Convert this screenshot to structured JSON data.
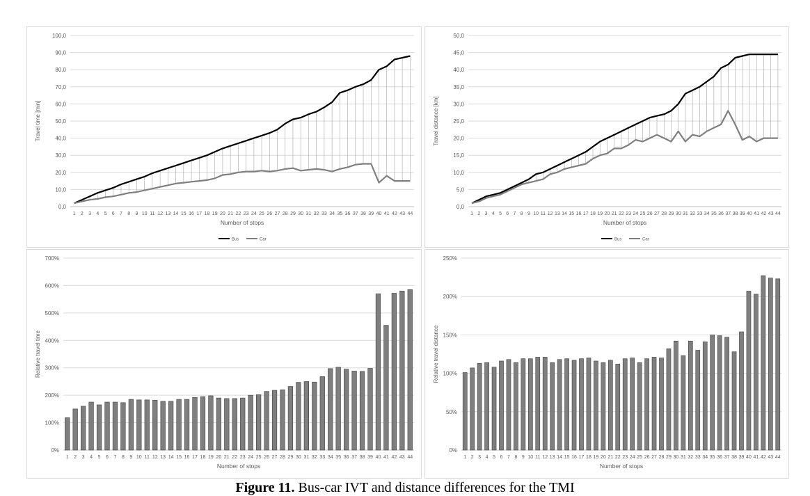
{
  "caption": {
    "label": "Figure 11.",
    "text": "Bus-car IVT and distance differences for the TMI"
  },
  "chart_data": [
    {
      "type": "line",
      "xlabel": "Number of stops",
      "ylabel": "Travel time [min]",
      "ylim": [
        0,
        100
      ],
      "ytick_step": 10,
      "tick_format": "decimal1",
      "grid": true,
      "drop_lines": true,
      "legend": "bottom-center",
      "categories": [
        "1",
        "2",
        "3",
        "4",
        "5",
        "6",
        "7",
        "8",
        "9",
        "10",
        "11",
        "12",
        "13",
        "14",
        "15",
        "16",
        "17",
        "18",
        "19",
        "20",
        "21",
        "22",
        "23",
        "24",
        "25",
        "26",
        "27",
        "28",
        "29",
        "30",
        "31",
        "32",
        "33",
        "34",
        "35",
        "36",
        "37",
        "38",
        "39",
        "40",
        "41",
        "42",
        "43",
        "44"
      ],
      "series": [
        {
          "name": "Bus",
          "color": "#000000",
          "values": [
            2,
            4,
            6,
            8,
            9.5,
            11,
            13,
            14.5,
            16,
            17.5,
            19.5,
            21,
            22.5,
            24,
            25.5,
            27,
            28.5,
            30,
            32,
            34,
            35.5,
            37,
            38.5,
            40,
            41.5,
            43,
            45,
            48.5,
            51,
            52,
            54,
            55.5,
            58,
            61,
            66.5,
            68,
            70,
            71.5,
            74,
            80,
            82,
            86,
            87,
            88
          ]
        },
        {
          "name": "Car",
          "color": "#7f7f7f",
          "values": [
            2,
            3,
            4,
            4.5,
            5.5,
            6,
            7,
            8,
            8.5,
            9.5,
            10.5,
            11.5,
            12.5,
            13.5,
            14,
            14.5,
            15,
            15.5,
            16.5,
            18.5,
            19,
            20,
            20.5,
            20.5,
            21,
            20.5,
            21,
            22,
            22.5,
            21,
            21.5,
            22,
            21.5,
            20.5,
            22,
            23,
            24.5,
            25,
            25,
            14,
            18,
            15,
            15,
            15
          ]
        }
      ]
    },
    {
      "type": "line",
      "xlabel": "Number of stops",
      "ylabel": "Travel distance [km]",
      "ylim": [
        0,
        50
      ],
      "ytick_step": 5,
      "tick_format": "decimal1",
      "grid": true,
      "drop_lines": true,
      "legend": "bottom-center",
      "categories": [
        "1",
        "2",
        "3",
        "4",
        "5",
        "6",
        "7",
        "8",
        "9",
        "10",
        "11",
        "12",
        "13",
        "14",
        "15",
        "16",
        "17",
        "18",
        "19",
        "20",
        "21",
        "22",
        "23",
        "24",
        "25",
        "26",
        "27",
        "28",
        "29",
        "30",
        "31",
        "32",
        "33",
        "34",
        "35",
        "36",
        "37",
        "38",
        "39",
        "40",
        "41",
        "42",
        "43",
        "44"
      ],
      "series": [
        {
          "name": "Bus",
          "color": "#000000",
          "values": [
            1,
            2,
            3,
            3.5,
            4,
            5,
            6,
            7,
            8,
            9.5,
            10,
            11,
            12,
            13,
            14,
            15,
            16,
            17.5,
            19,
            20,
            21,
            22,
            23,
            24,
            25,
            26,
            26.5,
            27,
            28,
            30,
            33,
            34,
            35,
            36.5,
            38,
            40.5,
            41.5,
            43.5,
            44,
            44.5,
            44.5,
            44.5,
            44.5,
            44.5
          ]
        },
        {
          "name": "Car",
          "color": "#7f7f7f",
          "values": [
            1,
            1.5,
            2.5,
            3,
            3.5,
            4.5,
            5.5,
            6.5,
            7,
            7.5,
            8,
            9.5,
            10,
            11,
            11.5,
            12,
            12.5,
            14,
            15,
            15.5,
            17,
            17,
            18,
            19.5,
            19,
            20,
            21,
            20,
            19,
            22,
            19,
            21,
            20.5,
            22,
            23,
            24,
            28,
            24,
            19.5,
            20.5,
            19,
            20,
            20,
            20
          ]
        }
      ]
    },
    {
      "type": "bar",
      "xlabel": "Number of stops",
      "ylabel": "Relative travel time",
      "ylim": [
        0,
        700
      ],
      "ytick_step": 100,
      "tick_format": "percent",
      "grid": true,
      "color": "#7f7f7f",
      "categories": [
        "1",
        "2",
        "3",
        "4",
        "5",
        "6",
        "7",
        "8",
        "9",
        "10",
        "11",
        "12",
        "13",
        "14",
        "15",
        "16",
        "17",
        "18",
        "19",
        "20",
        "21",
        "22",
        "23",
        "24",
        "25",
        "26",
        "27",
        "28",
        "29",
        "30",
        "31",
        "32",
        "33",
        "34",
        "35",
        "36",
        "37",
        "38",
        "39",
        "40",
        "41",
        "42",
        "43",
        "44"
      ],
      "values": [
        118,
        150,
        160,
        175,
        165,
        175,
        175,
        173,
        185,
        183,
        183,
        182,
        178,
        178,
        185,
        185,
        192,
        195,
        198,
        190,
        188,
        188,
        190,
        200,
        202,
        214,
        218,
        220,
        232,
        247,
        250,
        248,
        268,
        297,
        302,
        295,
        288,
        287,
        298,
        570,
        455,
        572,
        580,
        585
      ]
    },
    {
      "type": "bar",
      "xlabel": "Number of stops",
      "ylabel": "Relative travel distance",
      "ylim": [
        0,
        250
      ],
      "ytick_step": 50,
      "tick_format": "percent",
      "grid": true,
      "color": "#7f7f7f",
      "categories": [
        "1",
        "2",
        "3",
        "4",
        "5",
        "6",
        "7",
        "8",
        "9",
        "10",
        "11",
        "12",
        "13",
        "14",
        "15",
        "16",
        "17",
        "18",
        "19",
        "20",
        "21",
        "22",
        "23",
        "24",
        "25",
        "26",
        "27",
        "28",
        "29",
        "30",
        "31",
        "32",
        "33",
        "34",
        "35",
        "36",
        "37",
        "38",
        "39",
        "40",
        "41",
        "42",
        "43",
        "44"
      ],
      "values": [
        101,
        107,
        113,
        114,
        108,
        116,
        118,
        114,
        119,
        119,
        121,
        121,
        114,
        118,
        119,
        117,
        119,
        120,
        116,
        114,
        117,
        112,
        119,
        120,
        114,
        119,
        121,
        120,
        132,
        142,
        123,
        142,
        130,
        141,
        150,
        149,
        147,
        128,
        154,
        207,
        203,
        227,
        224,
        223
      ]
    }
  ]
}
